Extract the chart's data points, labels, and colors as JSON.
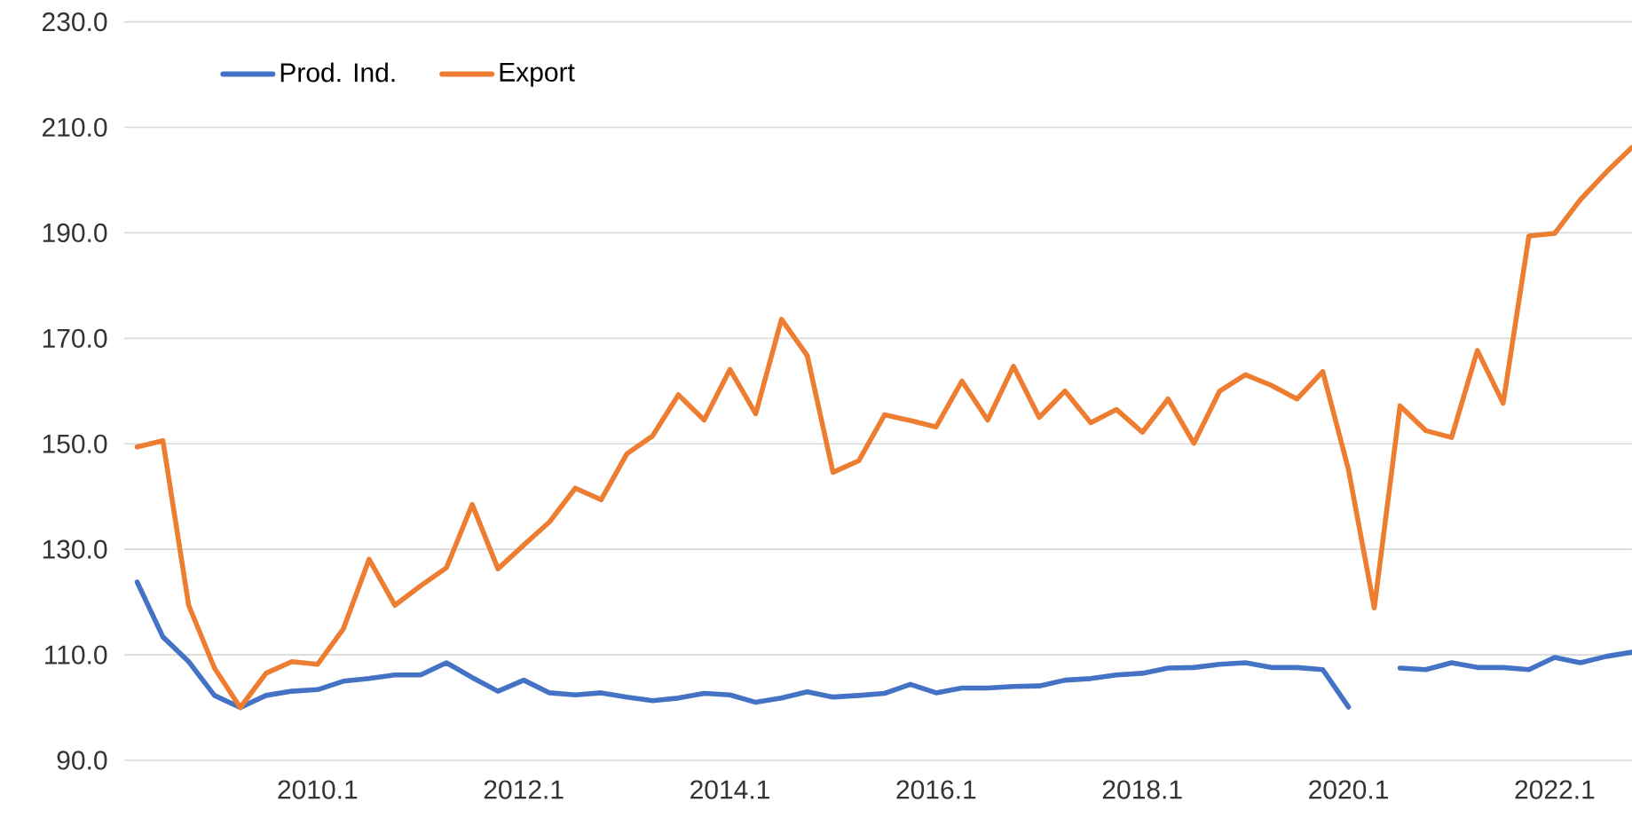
{
  "chart_data": {
    "type": "line",
    "categories": [
      null,
      null,
      null,
      null,
      null,
      null,
      null,
      "2010.1",
      null,
      null,
      null,
      null,
      null,
      null,
      null,
      "2012.1",
      null,
      null,
      null,
      null,
      null,
      null,
      null,
      "2014.1",
      null,
      null,
      null,
      null,
      null,
      null,
      null,
      "2016.1",
      null,
      null,
      null,
      null,
      null,
      null,
      null,
      "2018.1",
      null,
      null,
      null,
      null,
      null,
      null,
      null,
      "2020.1",
      null,
      null,
      null,
      null,
      null,
      null,
      null,
      "2022.1",
      null,
      null,
      null
    ],
    "series": [
      {
        "name": "Prod. Ind.",
        "color": "#4472c4",
        "values": [
          123.8,
          113.4,
          108.7,
          102.3,
          100,
          102.3,
          103.1,
          103.4,
          105.0,
          105.5,
          106.2,
          106.2,
          108.5,
          105.7,
          103.1,
          105.2,
          102.8,
          102.4,
          102.8,
          102.0,
          101.3,
          101.8,
          102.7,
          102.4,
          101.0,
          101.8,
          103.0,
          102.0,
          102.3,
          102.7,
          104.4,
          102.8,
          103.7,
          103.7,
          104.0,
          104.1,
          105.2,
          105.5,
          106.2,
          106.5,
          107.5,
          107.6,
          108.2,
          108.5,
          107.6,
          107.6,
          107.2,
          100.1,
          null,
          107.5,
          107.2,
          108.5,
          107.6,
          107.6,
          107.2,
          109.5,
          108.5,
          109.7,
          110.5
        ]
      },
      {
        "name": "Export",
        "color": "#ed7d31",
        "values": [
          149.4,
          150.6,
          119.4,
          107.5,
          100,
          106.5,
          108.7,
          108.2,
          114.9,
          128.1,
          119.4,
          123.1,
          126.5,
          138.5,
          126.3,
          130.8,
          135.2,
          141.6,
          139.4,
          148.1,
          151.5,
          159.3,
          154.5,
          164.1,
          155.7,
          173.6,
          166.7,
          144.6,
          146.8,
          155.5,
          154.4,
          153.2,
          161.9,
          154.5,
          164.7,
          155.0,
          160.0,
          154.0,
          156.5,
          152.2,
          158.5,
          150.1,
          160.0,
          163.1,
          161.1,
          158.5,
          163.7,
          145.1,
          118.9,
          157.2,
          152.5,
          151.2,
          167.7,
          157.7,
          189.4,
          189.9,
          196.3,
          201.5,
          206.2
        ]
      }
    ],
    "ylim": [
      90,
      230
    ],
    "yticks": [
      {
        "value": 90,
        "label": "90.0"
      },
      {
        "value": 110,
        "label": "110.0"
      },
      {
        "value": 130,
        "label": "130.0"
      },
      {
        "value": 150,
        "label": "150.0"
      },
      {
        "value": 170,
        "label": "170.0"
      },
      {
        "value": 190,
        "label": "190.0"
      },
      {
        "value": 210,
        "label": "210.0"
      },
      {
        "value": 230,
        "label": "230.0"
      }
    ],
    "grid": "y",
    "legend": "top left",
    "marker": "none",
    "line_style": "solid"
  }
}
